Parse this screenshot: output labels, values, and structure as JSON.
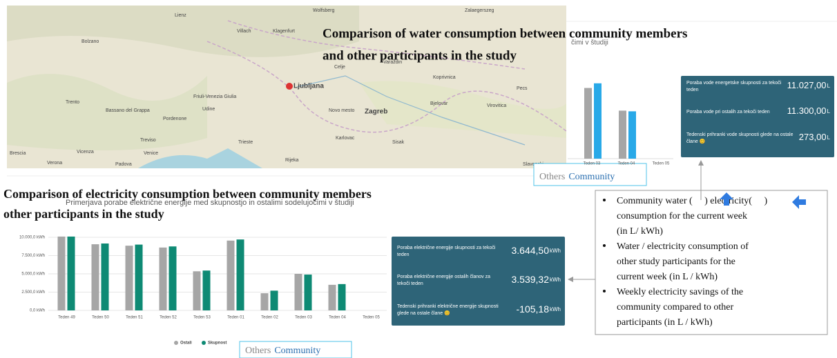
{
  "map": {
    "labels": [
      "Wolfsberg",
      "Zalaegerszeg",
      "Lienz",
      "Villach",
      "Klagenfurt",
      "Bolzano",
      "Trento",
      "Bassano del Grappa",
      "Friuli-Venezia Giulia",
      "Udine",
      "Pordenone",
      "Treviso",
      "Vicenza",
      "Venice",
      "Padova",
      "Verona",
      "Brescia",
      "Trieste",
      "Ljubljana",
      "Celje",
      "Novo mesto",
      "Zagreb",
      "Karlovac",
      "Rijeka",
      "Varaždin",
      "Koprivnica",
      "Bjelovar",
      "Virovitica",
      "Pecs",
      "Sisak",
      "Slavonski"
    ]
  },
  "water_title": [
    "Comparison of water consumption between community members",
    "and other participants in the study"
  ],
  "water_chart": {
    "type": "bar",
    "title_fragment": "čimi v študiji",
    "categories": [
      "Teden 03",
      "Teden 04",
      "Teden 05"
    ],
    "series": [
      {
        "name": "Ostali",
        "color": "#a6a6a6",
        "values": [
          10600,
          7200,
          null
        ]
      },
      {
        "name": "Skupnost",
        "color": "#29a9e8",
        "values": [
          11300,
          7100,
          null
        ]
      }
    ],
    "ylim": [
      0,
      12000
    ]
  },
  "water_legend": [
    "Others",
    "Community"
  ],
  "water_panel": {
    "rows": [
      {
        "label": [
          "Poraba vode energetske skupnosti za tekoči",
          "teden"
        ],
        "value": "11.027,00",
        "unit": "L"
      },
      {
        "label": [
          "Poraba vode pri ostalih za tekoči teden"
        ],
        "value": "11.300,00",
        "unit": "L"
      },
      {
        "label": [
          "Tedenski prihranki vode skupnosti glede na ostale",
          "člane 😊"
        ],
        "value": "273,00",
        "unit": "L"
      }
    ]
  },
  "electricity_title": [
    "Comparison of electricity consumption between community members",
    "other participants in the study"
  ],
  "electricity_chart": {
    "type": "bar",
    "title": "Primerjava porabe električne energije med skupnostjo in ostalimi sodelujočimi v študiji",
    "categories": [
      "Teden 49",
      "Teden 50",
      "Teden 51",
      "Teden 52",
      "Teden 53",
      "Teden 01",
      "Teden 02",
      "Teden 03",
      "Teden 04",
      "Teden 05"
    ],
    "series": [
      {
        "name": "Ostali",
        "color": "#a6a6a6",
        "values": [
          10100,
          9050,
          8850,
          8600,
          5350,
          9550,
          2350,
          5000,
          3500,
          null
        ]
      },
      {
        "name": "Skupnost",
        "color": "#0e8a74",
        "values": [
          10100,
          9150,
          9000,
          8750,
          5450,
          9700,
          2700,
          4900,
          3600,
          null
        ]
      }
    ],
    "ylim": [
      0,
      10000
    ],
    "yticks": [
      {
        "value": 0,
        "label": "0,0 kWh"
      },
      {
        "value": 2500,
        "label": "2.500,0 kWh"
      },
      {
        "value": 5000,
        "label": "5.000,0 kWh"
      },
      {
        "value": 7500,
        "label": "7.500,0 kWh"
      },
      {
        "value": 10000,
        "label": "10.000,0 kWh"
      }
    ],
    "grid": true
  },
  "electricity_legend": [
    "Others",
    "Community"
  ],
  "electricity_panel": {
    "rows": [
      {
        "label": [
          "Poraba električne energije skupnosti za tekoči",
          "teden"
        ],
        "value": "3.644,50",
        "unit": "kWh"
      },
      {
        "label": [
          "Poraba električne energije ostalih članov za",
          "tekoči teden"
        ],
        "value": "3.539,32",
        "unit": "kWh"
      },
      {
        "label": [
          "Tedenski prihranki električne energije skupnosti",
          "glede na ostale člane 😊"
        ],
        "value": "-105,18",
        "unit": "kWh"
      }
    ]
  },
  "annotation": {
    "bullets": [
      [
        "Community water (     ) electricity(     )",
        "consumption for the current week",
        "(in L/ kWh)"
      ],
      [
        "Water / electricity consumption of",
        "other study participants for the",
        "current week (in L / kWh)"
      ],
      [
        "Weekly electricity savings of the",
        "community compared to other",
        "participants (in L / kWh)"
      ]
    ]
  }
}
